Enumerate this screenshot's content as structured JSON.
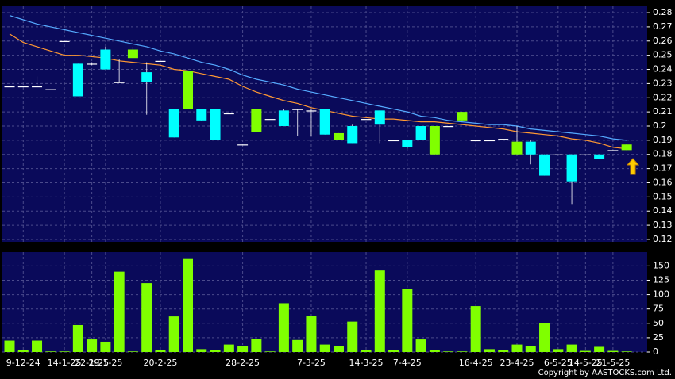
{
  "chart_data": [
    {
      "type": "candlestick",
      "categories": [
        null,
        "9-12-24",
        null,
        null,
        "14-1-25",
        null,
        "22-1-25",
        "29-1-25",
        null,
        null,
        null,
        "20-2-25",
        null,
        null,
        null,
        null,
        null,
        "28-2-25",
        null,
        null,
        null,
        null,
        "7-3-25",
        null,
        null,
        null,
        "14-3-25",
        null,
        null,
        "7-4-25",
        null,
        null,
        null,
        null,
        "16-4-25",
        null,
        null,
        "23-4-25",
        null,
        null,
        "6-5-25",
        null,
        "14-5-25",
        null,
        "21-5-25",
        null
      ],
      "open": [
        0.228,
        0.228,
        0.228,
        0.226,
        0.26,
        0.244,
        0.244,
        0.254,
        0.231,
        0.248,
        0.238,
        0.246,
        0.212,
        0.212,
        0.212,
        0.212,
        0.209,
        0.187,
        0.196,
        0.205,
        0.211,
        0.212,
        0.211,
        0.212,
        0.19,
        0.2,
        0.205,
        0.211,
        0.19,
        0.19,
        0.2,
        0.18,
        0.2,
        0.204,
        0.19,
        0.19,
        0.191,
        0.18,
        0.189,
        0.18,
        0.18,
        0.18,
        0.18,
        0.18,
        0.183,
        0.183
      ],
      "high": [
        0.228,
        0.228,
        0.235,
        0.226,
        0.26,
        0.244,
        0.245,
        0.256,
        0.247,
        0.256,
        0.245,
        0.246,
        0.212,
        0.239,
        0.212,
        0.212,
        0.209,
        0.187,
        0.212,
        0.205,
        0.212,
        0.212,
        0.212,
        0.212,
        0.195,
        0.201,
        0.205,
        0.211,
        0.19,
        0.19,
        0.2,
        0.2,
        0.2,
        0.21,
        0.19,
        0.19,
        0.191,
        0.2,
        0.19,
        0.18,
        0.18,
        0.18,
        0.18,
        0.18,
        0.183,
        0.187
      ],
      "low": [
        0.228,
        0.228,
        0.228,
        0.226,
        0.26,
        0.221,
        0.243,
        0.24,
        0.231,
        0.248,
        0.208,
        0.246,
        0.192,
        0.212,
        0.204,
        0.19,
        0.209,
        0.187,
        0.196,
        0.205,
        0.2,
        0.193,
        0.193,
        0.194,
        0.19,
        0.188,
        0.205,
        0.188,
        0.19,
        0.184,
        0.19,
        0.18,
        0.2,
        0.204,
        0.19,
        0.19,
        0.191,
        0.18,
        0.173,
        0.165,
        0.18,
        0.145,
        0.18,
        0.177,
        0.183,
        0.183
      ],
      "close": [
        0.228,
        0.228,
        0.228,
        0.226,
        0.26,
        0.221,
        0.244,
        0.24,
        0.231,
        0.254,
        0.231,
        0.246,
        0.192,
        0.239,
        0.204,
        0.19,
        0.209,
        0.187,
        0.212,
        0.205,
        0.2,
        0.212,
        0.211,
        0.194,
        0.195,
        0.188,
        0.205,
        0.201,
        0.19,
        0.185,
        0.19,
        0.2,
        0.2,
        0.21,
        0.19,
        0.19,
        0.191,
        0.189,
        0.18,
        0.165,
        0.18,
        0.161,
        0.18,
        0.177,
        0.183,
        0.187
      ],
      "up_color": "#80ff00",
      "down_color": "#00ffff",
      "series": [
        {
          "color": "#55aaff",
          "values": [
            0.278,
            0.275,
            0.272,
            0.27,
            0.268,
            0.266,
            0.264,
            0.262,
            0.26,
            0.258,
            0.256,
            0.253,
            0.251,
            0.248,
            0.245,
            0.243,
            0.24,
            0.236,
            0.233,
            0.231,
            0.229,
            0.226,
            0.224,
            0.222,
            0.22,
            0.218,
            0.216,
            0.214,
            0.212,
            0.21,
            0.207,
            0.206,
            0.204,
            0.203,
            0.202,
            0.201,
            0.201,
            0.2,
            0.198,
            0.197,
            0.196,
            0.195,
            0.194,
            0.193,
            0.191,
            0.19
          ]
        },
        {
          "color": "#ff9933",
          "values": [
            0.265,
            0.259,
            0.256,
            0.253,
            0.25,
            0.25,
            0.249,
            0.248,
            0.246,
            0.245,
            0.244,
            0.243,
            0.24,
            0.239,
            0.237,
            0.235,
            0.233,
            0.228,
            0.224,
            0.221,
            0.218,
            0.216,
            0.213,
            0.211,
            0.209,
            0.207,
            0.206,
            0.205,
            0.205,
            0.204,
            0.203,
            0.203,
            0.202,
            0.201,
            0.2,
            0.199,
            0.198,
            0.196,
            0.195,
            0.194,
            0.193,
            0.191,
            0.19,
            0.188,
            0.185,
            0.184
          ]
        }
      ],
      "ylim": [
        0.1183,
        0.2845
      ],
      "yticks": [
        0.12,
        0.13,
        0.14,
        0.15,
        0.16,
        0.17,
        0.18,
        0.19,
        0.2,
        0.21,
        0.22,
        0.23,
        0.24,
        0.25,
        0.26,
        0.27,
        0.28
      ],
      "grid": true
    },
    {
      "type": "bar",
      "values": [
        20,
        4,
        20,
        1,
        1,
        47,
        22,
        18,
        140,
        1,
        120,
        4,
        62,
        162,
        5,
        3,
        13,
        10,
        23,
        1,
        85,
        21,
        63,
        13,
        10,
        53,
        3,
        142,
        4,
        110,
        22,
        3,
        1,
        1,
        80,
        5,
        3,
        13,
        11,
        50,
        5,
        13,
        2,
        9,
        2,
        1
      ],
      "color": "#80ff00",
      "ylim": [
        0,
        174
      ],
      "yticks": [
        0,
        25,
        50,
        75,
        100,
        125,
        150
      ],
      "grid": true
    }
  ],
  "footer": "Copyright by AASTOCKS.com Ltd."
}
